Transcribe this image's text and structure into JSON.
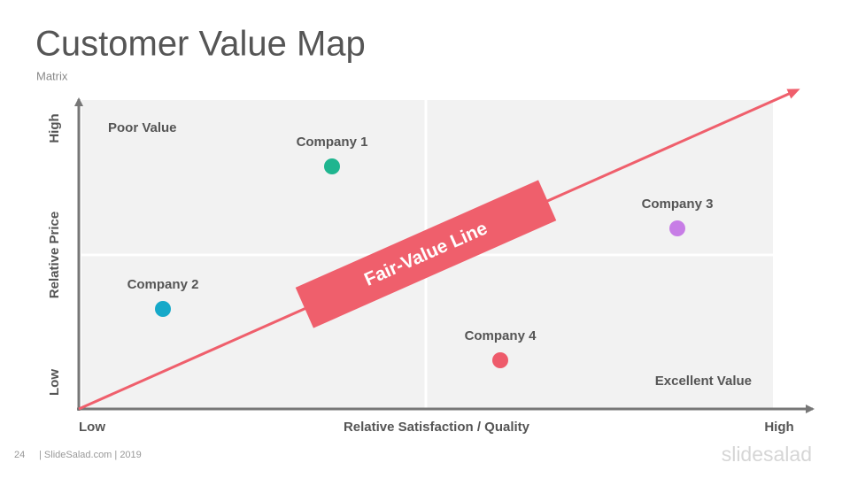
{
  "header": {
    "title": "Customer Value Map",
    "subtitle": "Matrix"
  },
  "axes": {
    "y_label": "Relative Price",
    "y_high": "High",
    "y_low": "Low",
    "x_label": "Relative Satisfaction / Quality",
    "x_low": "Low",
    "x_high": "High"
  },
  "quadrants": {
    "top_left": "Poor Value",
    "bottom_right": "Excellent Value"
  },
  "fair_value_line": {
    "label": "Fair-Value Line"
  },
  "companies": [
    {
      "label": "Company 1"
    },
    {
      "label": "Company 2"
    },
    {
      "label": "Company 3"
    },
    {
      "label": "Company 4"
    }
  ],
  "footer": {
    "page": "24",
    "credit": "| SlideSalad.com | 2019",
    "logo": "slidesalad"
  }
}
